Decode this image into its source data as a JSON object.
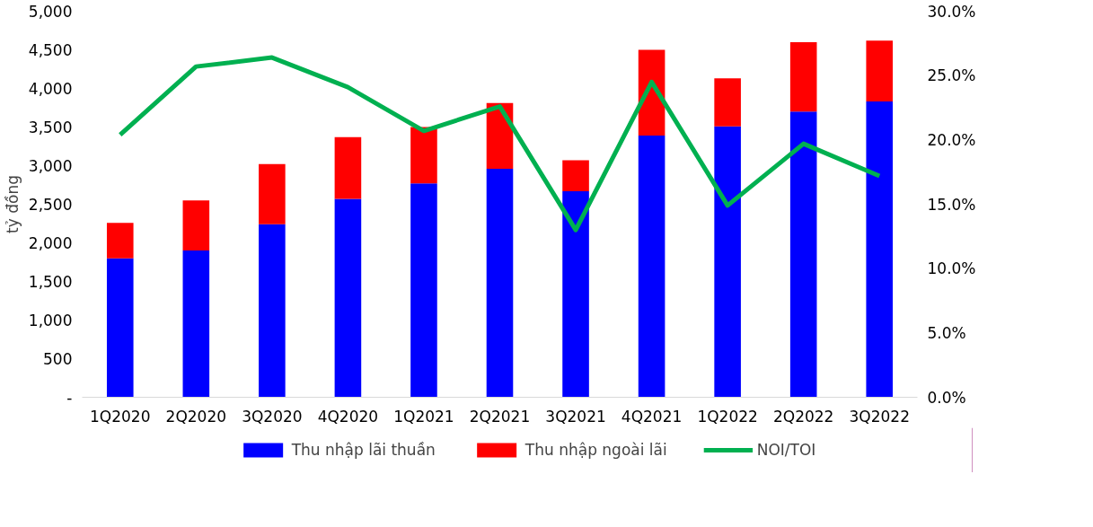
{
  "chart_data": {
    "type": "bar",
    "stacked": true,
    "ylabel": "tỷ đồng",
    "categories": [
      "1Q2020",
      "2Q2020",
      "3Q2020",
      "4Q2020",
      "1Q2021",
      "2Q2021",
      "3Q2021",
      "4Q2021",
      "1Q2022",
      "2Q2022",
      "3Q2022"
    ],
    "series": [
      {
        "name": "Thu nhập lãi thuần",
        "color": "#0000ff",
        "values": [
          1800,
          1900,
          2240,
          2570,
          2770,
          2960,
          2670,
          3390,
          3510,
          3700,
          3830
        ]
      },
      {
        "name": "Thu nhập ngoài lãi",
        "color": "#ff0000",
        "values": [
          460,
          650,
          780,
          800,
          730,
          850,
          400,
          1110,
          620,
          900,
          790
        ]
      },
      {
        "name": "NOI/TOI",
        "type": "line",
        "axis": "y2",
        "color": "#00b050",
        "values": [
          20.4,
          25.7,
          26.4,
          24.1,
          20.7,
          22.6,
          13.0,
          24.5,
          14.9,
          19.7,
          17.2
        ]
      }
    ],
    "ylim": [
      0,
      5000
    ],
    "yticks": [
      {
        "value": 0,
        "label": "-"
      },
      500,
      {
        "value": 1000,
        "label": "1,000"
      },
      {
        "value": 1500,
        "label": "1,500"
      },
      {
        "value": 2000,
        "label": "2,000"
      },
      {
        "value": 2500,
        "label": "2,500"
      },
      {
        "value": 3000,
        "label": "3,000"
      },
      {
        "value": 3500,
        "label": "3,500"
      },
      {
        "value": 4000,
        "label": "4,000"
      },
      {
        "value": 4500,
        "label": "4,500"
      },
      {
        "value": 5000,
        "label": "5,000"
      }
    ],
    "y2lim": [
      0,
      30
    ],
    "y2ticks": [
      {
        "value": 0,
        "label": "0.0%"
      },
      {
        "value": 5,
        "label": "5.0%"
      },
      {
        "value": 10,
        "label": "10.0%"
      },
      {
        "value": 15,
        "label": "15.0%"
      },
      {
        "value": 20,
        "label": "20.0%"
      },
      {
        "value": 25,
        "label": "25.0%"
      },
      {
        "value": 30,
        "label": "30.0%"
      }
    ],
    "legend": "bottom",
    "line_style": "solid"
  }
}
